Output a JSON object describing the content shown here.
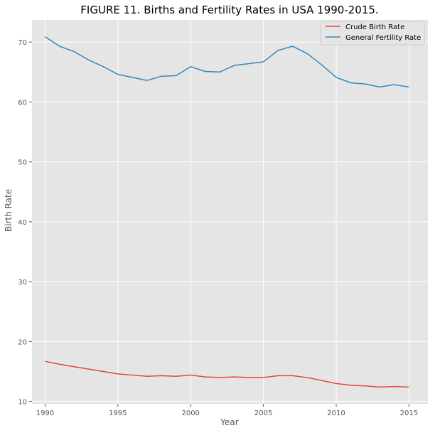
{
  "chart_data": {
    "type": "line",
    "title": "FIGURE 11. Births and Fertility Rates in USA 1990-2015.",
    "xlabel": "Year",
    "ylabel": "Birth Rate",
    "xlim": [
      1989.1,
      2016.3
    ],
    "ylim": [
      9.6,
      73.7
    ],
    "xticks": [
      1990,
      1995,
      2000,
      2005,
      2010,
      2015
    ],
    "yticks": [
      10,
      20,
      30,
      40,
      50,
      60,
      70
    ],
    "grid": true,
    "legend_position": "top-right",
    "x": [
      1990,
      1991,
      1992,
      1993,
      1994,
      1995,
      1996,
      1997,
      1998,
      1999,
      2000,
      2001,
      2002,
      2003,
      2004,
      2005,
      2006,
      2007,
      2008,
      2009,
      2010,
      2011,
      2012,
      2013,
      2014,
      2015
    ],
    "series": [
      {
        "name": "Crude Birth Rate",
        "color": "#E24A33",
        "values": [
          16.7,
          16.2,
          15.8,
          15.4,
          15.0,
          14.6,
          14.4,
          14.2,
          14.3,
          14.2,
          14.4,
          14.1,
          14.0,
          14.1,
          14.0,
          14.0,
          14.3,
          14.3,
          14.0,
          13.5,
          13.0,
          12.7,
          12.6,
          12.4,
          12.5,
          12.4
        ]
      },
      {
        "name": "General Fertility Rate",
        "color": "#348ABD",
        "values": [
          70.9,
          69.3,
          68.4,
          67.0,
          65.9,
          64.6,
          64.1,
          63.6,
          64.3,
          64.4,
          65.9,
          65.1,
          65.0,
          66.1,
          66.4,
          66.7,
          68.6,
          69.3,
          68.1,
          66.2,
          64.1,
          63.2,
          63.0,
          62.5,
          62.9,
          62.5
        ]
      }
    ]
  },
  "colors": {
    "plot_background": "#E5E5E5",
    "grid": "#FFFFFF"
  }
}
